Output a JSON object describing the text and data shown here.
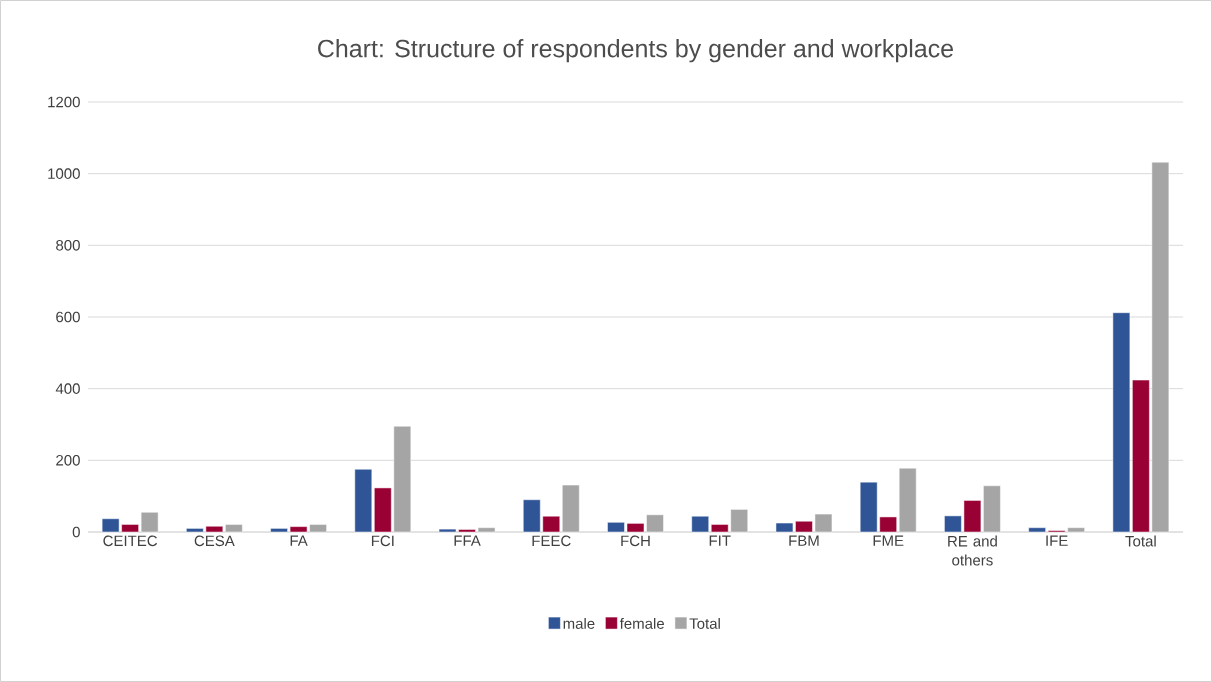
{
  "chart_data": {
    "type": "bar",
    "title": "Chart: Structure of respondents by gender and workplace",
    "categories": [
      "CEITEC",
      "CESA",
      "FA",
      "FCI",
      "FFA",
      "FEEC",
      "FCH",
      "FIT",
      "FBM",
      "FME",
      "RE and others",
      "IFE",
      "Total"
    ],
    "series": [
      {
        "name": "male",
        "color": "#2f5597",
        "values": [
          37,
          10,
          10,
          175,
          8,
          90,
          27,
          44,
          25,
          139,
          45,
          12,
          612
        ]
      },
      {
        "name": "female",
        "color": "#990033",
        "values": [
          21,
          16,
          15,
          123,
          7,
          44,
          24,
          21,
          30,
          42,
          88,
          4,
          424
        ]
      },
      {
        "name": "Total",
        "color": "#a5a5a5",
        "values": [
          55,
          21,
          21,
          295,
          12,
          131,
          48,
          63,
          50,
          178,
          129,
          12,
          1032
        ]
      }
    ],
    "ylim": [
      0,
      1200
    ],
    "yticks": [
      0,
      200,
      400,
      600,
      800,
      1000,
      1200
    ],
    "grid": "y",
    "legend": "bottom"
  }
}
